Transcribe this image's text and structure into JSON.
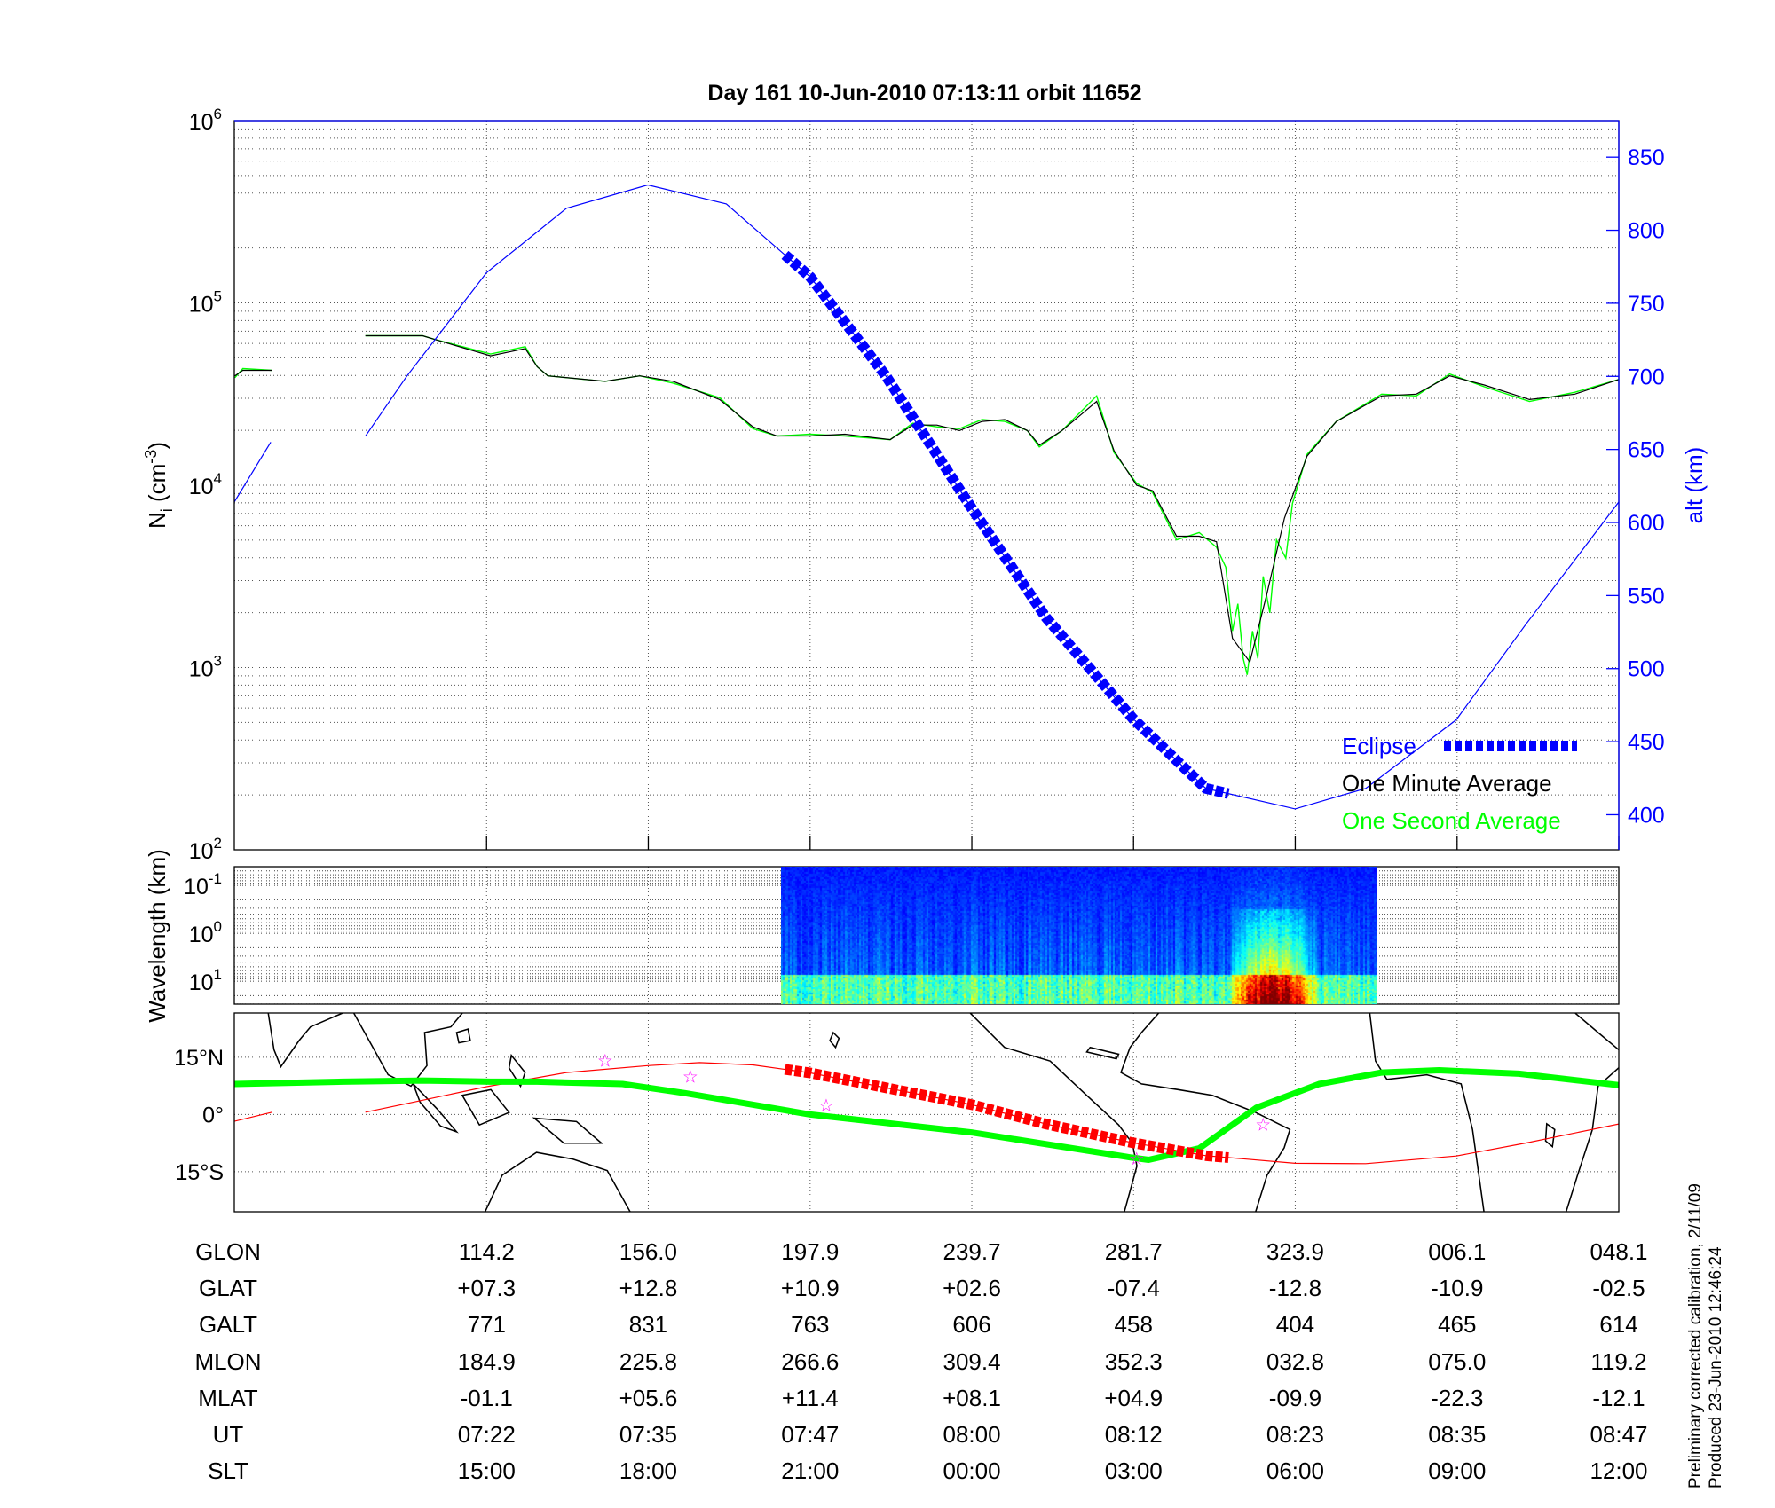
{
  "title": "Day 161  10-Jun-2010 07:13:11   orbit 11652",
  "side_notes": {
    "line1": "Preliminary corrected calibration, 2/11/09",
    "line2": "Produced 23-Jun-2010 12:46:24"
  },
  "chart_data": [
    {
      "type": "line",
      "name": "ion-density-and-altitude",
      "x_units": "UT minutes",
      "xlim": [
        423.06,
        527.0
      ],
      "xticks": [
        442.0,
        454.14,
        466.29,
        478.43,
        490.57,
        502.71,
        514.86,
        527.0
      ],
      "ylabel": {
        "symbol": "N",
        "subscript": "i",
        "unit_prefix": " (cm",
        "unit_exp": "-3",
        "unit_suffix": ")"
      },
      "yscale": "log",
      "ylim_log10": [
        2,
        6
      ],
      "yticks": [
        {
          "base": "10",
          "exp": "6",
          "value": 6
        },
        {
          "base": "10",
          "exp": "5",
          "value": 5
        },
        {
          "base": "10",
          "exp": "4",
          "value": 4
        },
        {
          "base": "10",
          "exp": "3",
          "value": 3
        },
        {
          "base": "10",
          "exp": "2",
          "value": 2
        }
      ],
      "y2label": "alt (km)",
      "y2lim": [
        376,
        875
      ],
      "y2ticks": [
        "850",
        "800",
        "750",
        "700",
        "650",
        "600",
        "550",
        "500",
        "450",
        "400"
      ],
      "grid": true,
      "legend": {
        "placement": "bottom-right",
        "entries": [
          {
            "label": "Eclipse",
            "color": "#0000ff"
          },
          {
            "label": "One Minute Average",
            "color": "#000000"
          },
          {
            "label": "One Second Average",
            "color": "#00ff00"
          }
        ]
      },
      "series": {
        "altitude_km": [
          [
            [
              423.06,
              614
            ],
            [
              425.8,
              655
            ]
          ],
          [
            [
              432.9,
              659
            ],
            [
              436,
              700
            ],
            [
              442,
              771
            ],
            [
              448,
              815
            ],
            [
              454.1,
              831
            ],
            [
              460,
              818
            ],
            [
              466.3,
              768
            ],
            [
              472,
              700
            ],
            [
              478.4,
              610
            ],
            [
              484,
              535
            ],
            [
              490.5,
              466
            ],
            [
              496,
              418
            ],
            [
              502.7,
              404
            ],
            [
              508,
              418
            ],
            [
              514.8,
              465
            ],
            [
              520,
              530
            ],
            [
              527,
              614
            ]
          ]
        ],
        "eclipse_range": [
          464.4,
          497.7
        ],
        "one_minute_average_log10": [
          [
            [
              423.1,
              4.6
            ],
            [
              423.7,
              4.63
            ],
            [
              425.9,
              4.63
            ]
          ],
          [
            [
              432.9,
              4.82
            ],
            [
              437.2,
              4.82
            ],
            [
              438.1,
              4.8
            ],
            [
              442.3,
              4.71
            ],
            [
              444.9,
              4.75
            ],
            [
              445.8,
              4.65
            ],
            [
              446.6,
              4.6
            ],
            [
              450.9,
              4.57
            ],
            [
              453.5,
              4.6
            ],
            [
              456.0,
              4.57
            ],
            [
              459.5,
              4.47
            ],
            [
              462.0,
              4.32
            ],
            [
              463.8,
              4.27
            ],
            [
              466.3,
              4.27
            ],
            [
              468.9,
              4.28
            ],
            [
              472.3,
              4.25
            ],
            [
              474.0,
              4.33
            ],
            [
              475.8,
              4.33
            ],
            [
              477.5,
              4.3
            ],
            [
              479.2,
              4.35
            ],
            [
              480.9,
              4.36
            ],
            [
              482.6,
              4.3
            ],
            [
              483.5,
              4.22
            ],
            [
              485.2,
              4.3
            ],
            [
              487.8,
              4.46
            ],
            [
              489.1,
              4.19
            ],
            [
              490.8,
              4.0
            ],
            [
              492.0,
              3.97
            ],
            [
              493.8,
              3.72
            ],
            [
              495.5,
              3.72
            ],
            [
              496.8,
              3.69
            ],
            [
              498.0,
              3.16
            ],
            [
              499.3,
              3.03
            ],
            [
              500.6,
              3.41
            ],
            [
              501.9,
              3.82
            ],
            [
              503.6,
              4.16
            ],
            [
              505.8,
              4.35
            ],
            [
              509.2,
              4.49
            ],
            [
              511.8,
              4.5
            ],
            [
              514.3,
              4.6
            ],
            [
              516.9,
              4.55
            ],
            [
              520.3,
              4.47
            ],
            [
              523.7,
              4.5
            ],
            [
              527.0,
              4.58
            ]
          ]
        ],
        "one_second_average_log10": [
          [
            [
              423.1,
              4.59
            ],
            [
              423.7,
              4.64
            ],
            [
              425.9,
              4.63
            ]
          ],
          [
            [
              432.9,
              4.82
            ],
            [
              437.2,
              4.82
            ],
            [
              438.1,
              4.8
            ],
            [
              442.3,
              4.72
            ],
            [
              444.9,
              4.76
            ],
            [
              445.8,
              4.65
            ],
            [
              446.6,
              4.6
            ],
            [
              450.9,
              4.57
            ],
            [
              453.5,
              4.6
            ],
            [
              456.0,
              4.56
            ],
            [
              459.5,
              4.48
            ],
            [
              462.0,
              4.31
            ],
            [
              463.8,
              4.27
            ],
            [
              466.3,
              4.28
            ],
            [
              468.9,
              4.27
            ],
            [
              472.3,
              4.25
            ],
            [
              474.0,
              4.34
            ],
            [
              475.8,
              4.32
            ],
            [
              477.5,
              4.31
            ],
            [
              479.2,
              4.36
            ],
            [
              480.9,
              4.35
            ],
            [
              482.6,
              4.3
            ],
            [
              483.5,
              4.21
            ],
            [
              485.2,
              4.3
            ],
            [
              487.8,
              4.49
            ],
            [
              489.1,
              4.18
            ],
            [
              490.8,
              4.01
            ],
            [
              492.0,
              3.96
            ],
            [
              493.8,
              3.7
            ],
            [
              495.5,
              3.74
            ],
            [
              496.8,
              3.66
            ],
            [
              497.5,
              3.55
            ],
            [
              498.0,
              3.2
            ],
            [
              498.4,
              3.35
            ],
            [
              498.8,
              3.05
            ],
            [
              499.1,
              2.96
            ],
            [
              499.5,
              3.2
            ],
            [
              499.9,
              3.05
            ],
            [
              500.3,
              3.5
            ],
            [
              500.8,
              3.3
            ],
            [
              501.3,
              3.7
            ],
            [
              502.0,
              3.6
            ],
            [
              502.5,
              3.9
            ],
            [
              503.6,
              4.17
            ],
            [
              505.8,
              4.35
            ],
            [
              509.2,
              4.5
            ],
            [
              511.8,
              4.49
            ],
            [
              514.3,
              4.61
            ],
            [
              516.9,
              4.54
            ],
            [
              520.3,
              4.46
            ],
            [
              523.7,
              4.51
            ],
            [
              527.0,
              4.58
            ]
          ]
        ]
      }
    },
    {
      "type": "heatmap",
      "name": "wavelength-spectrogram",
      "ylabel": "Wavelength (km)",
      "yscale": "log",
      "ylim_log10": [
        -1.39,
        1.48
      ],
      "y_inverted": true,
      "yticks": [
        {
          "base": "10",
          "exp": "-1",
          "value": -1
        },
        {
          "base": "10",
          "exp": "0",
          "value": 0
        },
        {
          "base": "10",
          "exp": "1",
          "value": 1
        }
      ],
      "data_time_range": [
        464.1,
        508.9
      ],
      "enhanced_power_time_range": [
        497.5,
        504.5
      ],
      "colormap": "jet"
    },
    {
      "type": "line",
      "name": "ground-track-map",
      "ylim": [
        -25.5,
        26.6
      ],
      "yticks": [
        {
          "label": "15°N",
          "value": 15
        },
        {
          "label": "0°",
          "value": 0
        },
        {
          "label": "15°S",
          "value": -15
        }
      ],
      "series": {
        "orbit_track_lat": [
          [
            [
              423.06,
              -1.8
            ],
            [
              425.9,
              0.6
            ]
          ],
          [
            [
              432.9,
              0.6
            ],
            [
              437,
              3.6
            ],
            [
              442,
              7.3
            ],
            [
              448,
              11.0
            ],
            [
              454.1,
              12.8
            ],
            [
              458,
              13.6
            ],
            [
              462,
              13.0
            ],
            [
              466.3,
              10.9
            ],
            [
              472,
              7.0
            ],
            [
              478.4,
              2.6
            ],
            [
              484,
              -2.5
            ],
            [
              490.5,
              -7.4
            ],
            [
              496,
              -10.8
            ],
            [
              502.7,
              -12.8
            ],
            [
              508,
              -12.9
            ],
            [
              514.8,
              -10.9
            ],
            [
              520,
              -7.5
            ],
            [
              527,
              -2.5
            ]
          ]
        ],
        "eclipse_range": [
          464.4,
          497.7
        ],
        "magnetic_equator_lat": [
          [
            423.06,
            8.0
          ],
          [
            431.2,
            8.6
          ],
          [
            437.2,
            8.9
          ],
          [
            442.3,
            8.6
          ],
          [
            445.8,
            8.6
          ],
          [
            452.2,
            8.0
          ],
          [
            456.9,
            5.6
          ],
          [
            466.3,
            0.0
          ],
          [
            478.4,
            -4.7
          ],
          [
            490.4,
            -11.3
          ],
          [
            491.7,
            -11.9
          ],
          [
            495.5,
            -8.9
          ],
          [
            499.8,
            1.8
          ],
          [
            504.5,
            8.0
          ],
          [
            509.2,
            11.0
          ],
          [
            513.5,
            11.6
          ],
          [
            519.5,
            10.7
          ],
          [
            527.0,
            7.7
          ]
        ],
        "stars": [
          [
            450.9,
            14.4
          ],
          [
            457.3,
            10.2
          ],
          [
            467.5,
            2.7
          ],
          [
            490.8,
            -11.3
          ],
          [
            500.3,
            -2.4
          ]
        ]
      },
      "colors": {
        "track": "#ff0000",
        "eclipse": "#ff0000",
        "equator": "#00ff00",
        "stars": "#ff00ff"
      }
    }
  ],
  "table": {
    "rows": [
      {
        "label": "GLON",
        "values": [
          "114.2",
          "156.0",
          "197.9",
          "239.7",
          "281.7",
          "323.9",
          "006.1",
          "048.1"
        ]
      },
      {
        "label": "GLAT",
        "values": [
          "+07.3",
          "+12.8",
          "+10.9",
          "+02.6",
          "-07.4",
          "-12.8",
          "-10.9",
          "-02.5"
        ]
      },
      {
        "label": "GALT",
        "values": [
          "771",
          "831",
          "763",
          "606",
          "458",
          "404",
          "465",
          "614"
        ]
      },
      {
        "label": "MLON",
        "values": [
          "184.9",
          "225.8",
          "266.6",
          "309.4",
          "352.3",
          "032.8",
          "075.0",
          "119.2"
        ]
      },
      {
        "label": "MLAT",
        "values": [
          "-01.1",
          "+05.6",
          "+11.4",
          "+08.1",
          "+04.9",
          "-09.9",
          "-22.3",
          "-12.1"
        ]
      },
      {
        "label": "UT",
        "values": [
          "07:22",
          "07:35",
          "07:47",
          "08:00",
          "08:12",
          "08:23",
          "08:35",
          "08:47"
        ]
      },
      {
        "label": "SLT",
        "values": [
          "15:00",
          "18:00",
          "21:00",
          "00:00",
          "03:00",
          "06:00",
          "09:00",
          "12:00"
        ]
      }
    ]
  }
}
